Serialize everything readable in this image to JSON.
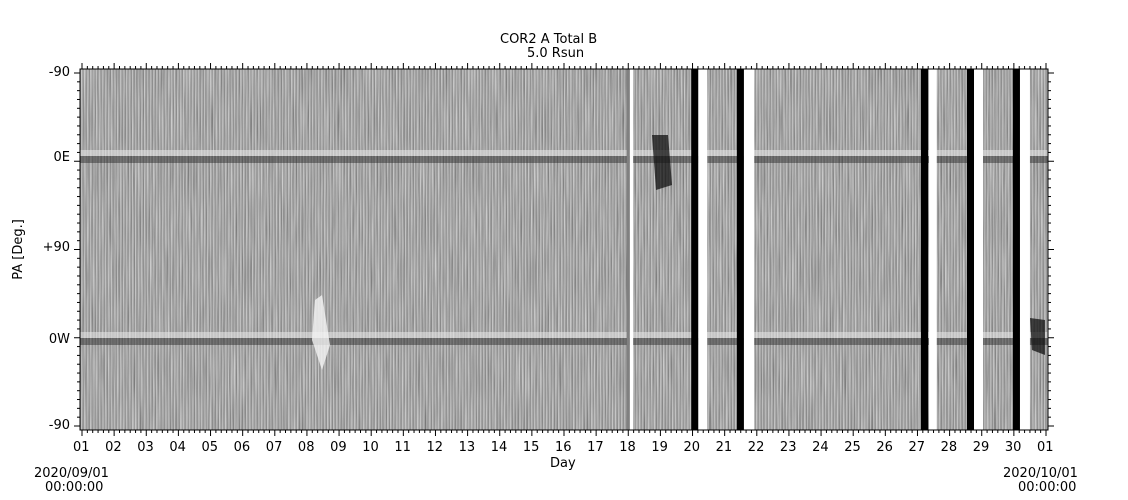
{
  "chart_data": {
    "type": "heatmap",
    "title": "COR2 A Total B",
    "subtitle": "5.0 Rsun",
    "xlabel": "Day",
    "ylabel": "PA [Deg.]",
    "xlim_days": [
      1,
      31
    ],
    "x_tick_labels": [
      "01",
      "02",
      "03",
      "04",
      "05",
      "06",
      "07",
      "08",
      "09",
      "10",
      "11",
      "12",
      "13",
      "14",
      "15",
      "16",
      "17",
      "18",
      "19",
      "20",
      "21",
      "22",
      "23",
      "24",
      "25",
      "26",
      "27",
      "28",
      "29",
      "30",
      "01"
    ],
    "y_tick_labels": [
      "-90",
      "0E",
      "+90",
      "0W",
      "-90"
    ],
    "start_label": {
      "date": "2020/09/01",
      "time": "00:00:00"
    },
    "end_label": {
      "date": "2020/10/01",
      "time": "00:00:00"
    },
    "colormap": "grayscale",
    "data_gaps": [
      {
        "start": 17.95,
        "end": 18.05,
        "fill": "gray"
      },
      {
        "start": 18.05,
        "end": 18.15,
        "fill": "white"
      },
      {
        "start": 19.96,
        "end": 20.18,
        "fill": "black"
      },
      {
        "start": 20.18,
        "end": 20.46,
        "fill": "white"
      },
      {
        "start": 21.38,
        "end": 21.6,
        "fill": "black"
      },
      {
        "start": 21.6,
        "end": 21.92,
        "fill": "white"
      },
      {
        "start": 27.11,
        "end": 27.33,
        "fill": "black"
      },
      {
        "start": 27.36,
        "end": 27.6,
        "fill": "white"
      },
      {
        "start": 28.54,
        "end": 28.76,
        "fill": "black"
      },
      {
        "start": 28.76,
        "end": 29.04,
        "fill": "white"
      },
      {
        "start": 29.97,
        "end": 30.19,
        "fill": "black"
      },
      {
        "start": 30.19,
        "end": 30.5,
        "fill": "white"
      }
    ],
    "streamer_bands": [
      "0E",
      "0W"
    ]
  }
}
